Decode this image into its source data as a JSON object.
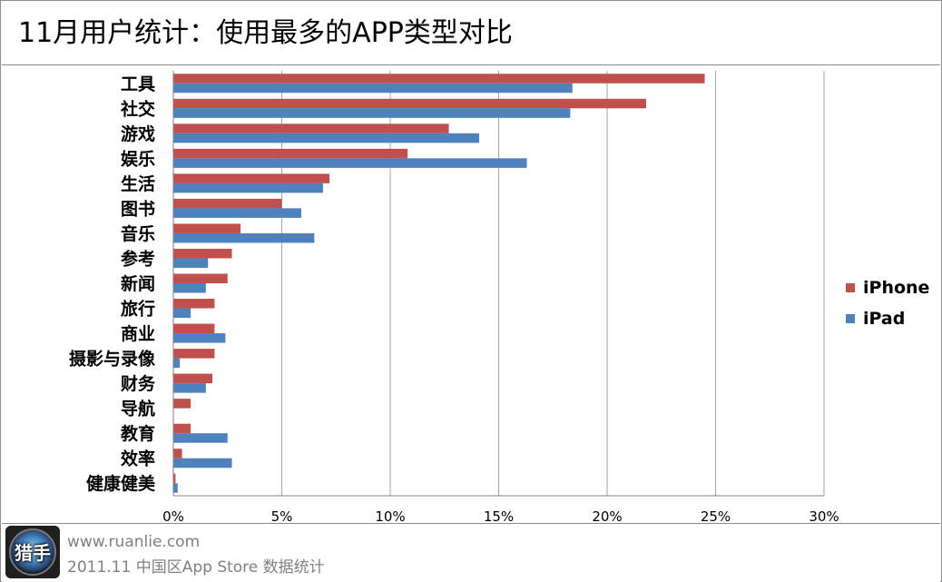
{
  "title": "11月用户统计：使用最多的APP类型对比",
  "footer": {
    "url": "www.ruanlie.com",
    "description": "2011.11 中国区App Store 数据统计",
    "logo_text": "猎手"
  },
  "colors": {
    "iphone": "#c0504d",
    "ipad": "#4f81bd",
    "grid": "#a6a6a6",
    "axis": "#808080"
  },
  "chart_data": {
    "type": "bar",
    "orientation": "horizontal",
    "title": "11月用户统计：使用最多的APP类型对比",
    "xlabel": "",
    "ylabel": "",
    "xlim": [
      0,
      30
    ],
    "ticks": [
      "0%",
      "5%",
      "10%",
      "15%",
      "20%",
      "25%",
      "30%"
    ],
    "tick_values": [
      0,
      5,
      10,
      15,
      20,
      25,
      30
    ],
    "grid": true,
    "legend_position": "right",
    "categories": [
      "工具",
      "社交",
      "游戏",
      "娱乐",
      "生活",
      "图书",
      "音乐",
      "参考",
      "新闻",
      "旅行",
      "商业",
      "摄影与录像",
      "财务",
      "导航",
      "教育",
      "效率",
      "健康健美"
    ],
    "series": [
      {
        "name": "iPhone",
        "color": "#c0504d",
        "values": [
          24.5,
          21.8,
          12.7,
          10.8,
          7.2,
          5.0,
          3.1,
          2.7,
          2.5,
          1.9,
          1.9,
          1.9,
          1.8,
          0.8,
          0.8,
          0.4,
          0.1
        ]
      },
      {
        "name": "iPad",
        "color": "#4f81bd",
        "values": [
          18.4,
          18.3,
          14.1,
          16.3,
          6.9,
          5.9,
          6.5,
          1.6,
          1.5,
          0.8,
          2.4,
          0.3,
          1.5,
          0.0,
          2.5,
          2.7,
          0.2
        ]
      }
    ]
  }
}
